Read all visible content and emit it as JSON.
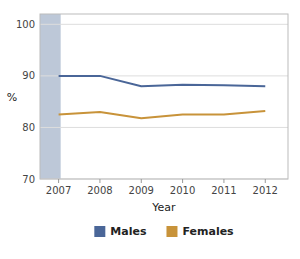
{
  "chart_data": {
    "type": "line",
    "x_label": "Year",
    "y_label": "%",
    "x": [
      2007,
      2008,
      2009,
      2010,
      2011,
      2012
    ],
    "series": [
      {
        "name": "Males",
        "color": "#4a6698",
        "values": [
          90.0,
          90.0,
          88.0,
          88.3,
          88.2,
          88.0
        ]
      },
      {
        "name": "Females",
        "color": "#c8933a",
        "values": [
          82.5,
          83.0,
          81.8,
          82.5,
          82.5,
          83.2
        ]
      }
    ],
    "xlim": [
      2006.55,
      2012.55
    ],
    "xticks": [
      2007,
      2008,
      2009,
      2010,
      2011,
      2012
    ],
    "ylim": [
      70,
      102
    ],
    "yticks": [
      70,
      80,
      90,
      100
    ],
    "band": {
      "from": 2006.55,
      "to": 2007.05,
      "color": "#bdc8d8"
    },
    "grid": true,
    "legend": "bottom"
  }
}
